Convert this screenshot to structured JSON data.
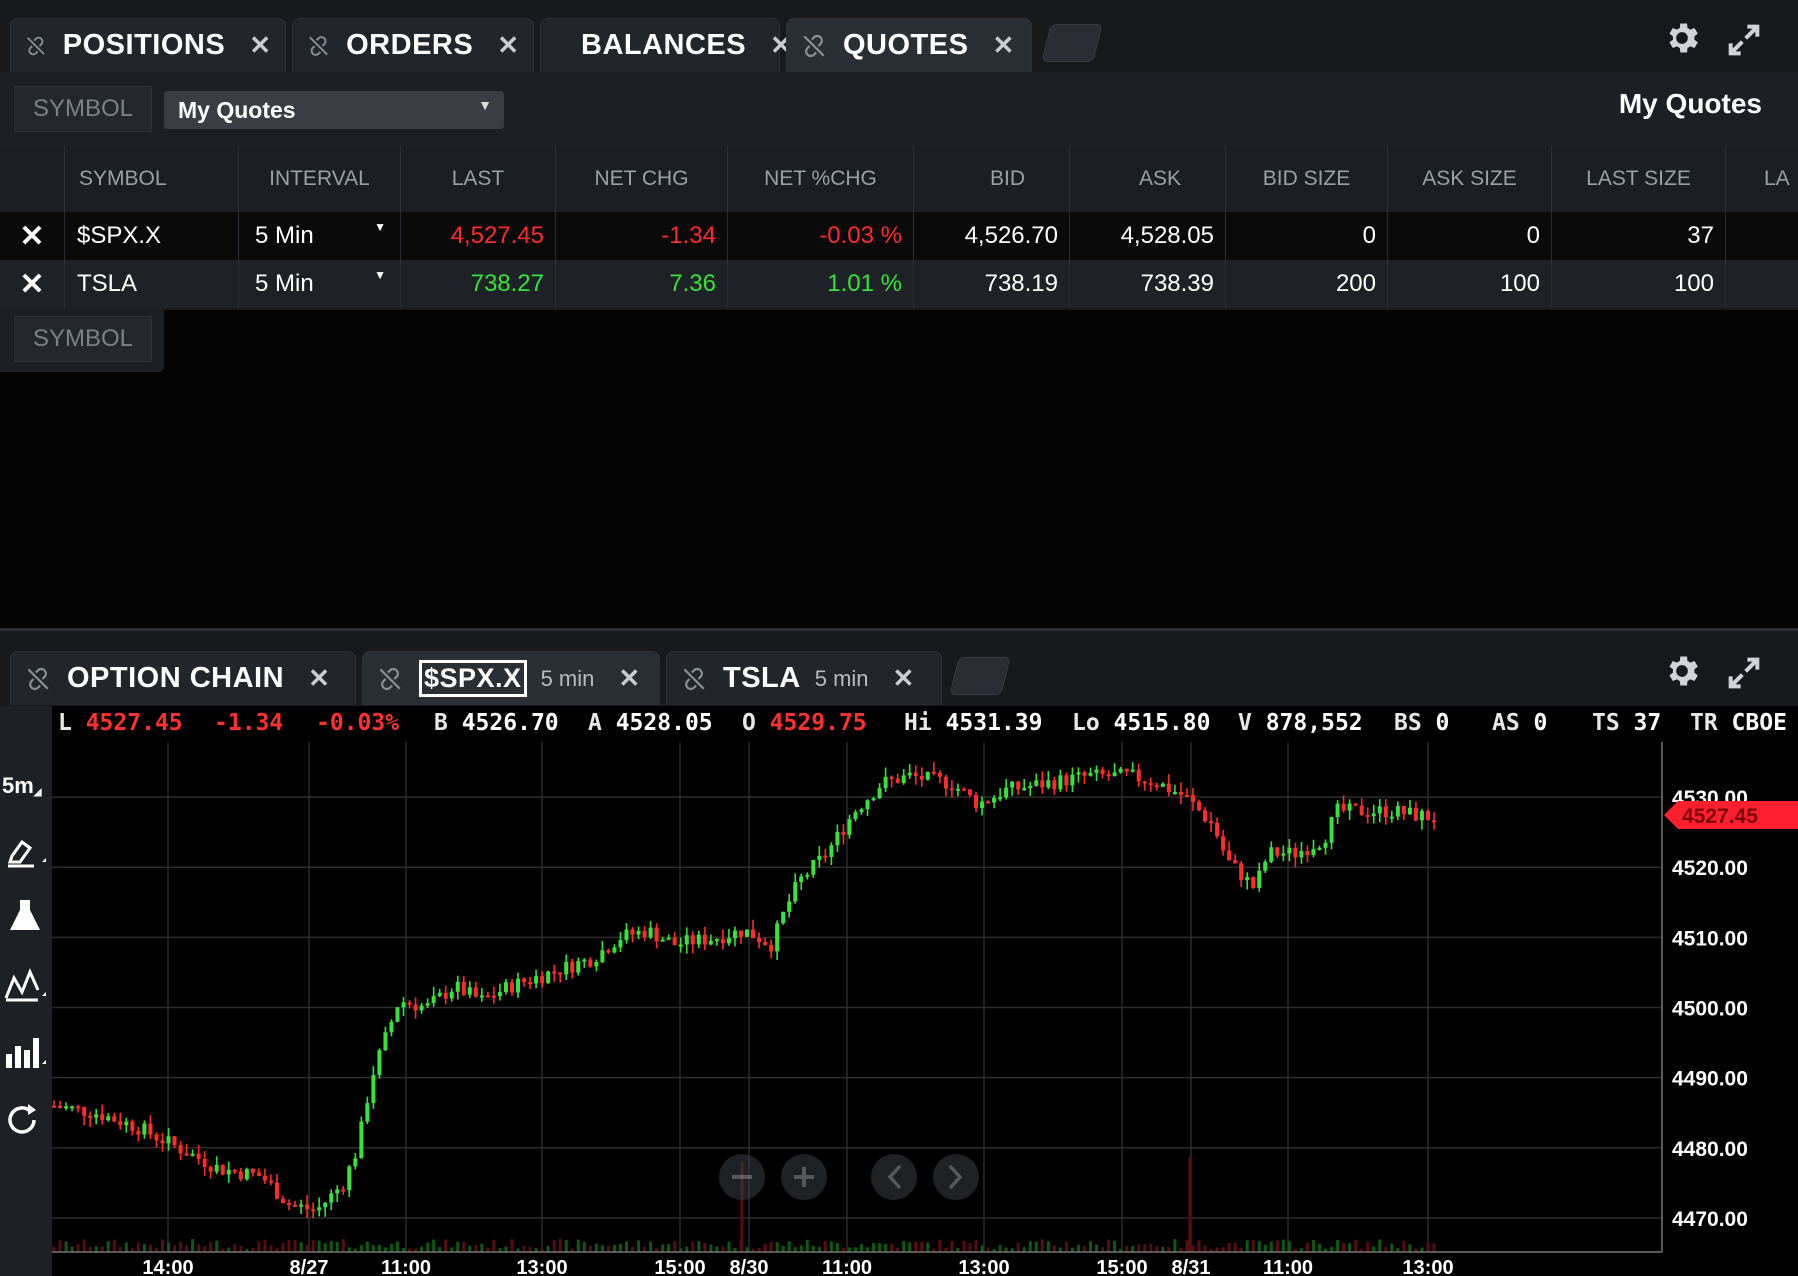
{
  "top_tabs": [
    {
      "label": "POSITIONS",
      "linked": true
    },
    {
      "label": "ORDERS",
      "linked": true
    },
    {
      "label": "BALANCES",
      "linked": false
    },
    {
      "label": "QUOTES",
      "linked": true
    }
  ],
  "filter": {
    "symbol_placeholder": "SYMBOL",
    "watchlist_selected": "My Quotes",
    "watchlist_title": "My Quotes"
  },
  "columns": [
    "SYMBOL",
    "INTERVAL",
    "LAST",
    "NET CHG",
    "NET %CHG",
    "BID",
    "ASK",
    "BID SIZE",
    "ASK SIZE",
    "LAST SIZE",
    "LA"
  ],
  "rows": [
    {
      "symbol": "$SPX.X",
      "interval": "5 Min",
      "last": "4,527.45",
      "net_chg": "-1.34",
      "net_pct": "-0.03 %",
      "bid": "4,526.70",
      "ask": "4,528.05",
      "bid_size": "0",
      "ask_size": "0",
      "last_size": "37",
      "direction": "down"
    },
    {
      "symbol": "TSLA",
      "interval": "5 Min",
      "last": "738.27",
      "net_chg": "7.36",
      "net_pct": "1.01 %",
      "bid": "738.19",
      "ask": "738.39",
      "bid_size": "200",
      "ask_size": "100",
      "last_size": "100",
      "direction": "up"
    }
  ],
  "add_symbol_placeholder": "SYMBOL",
  "bottom_tabs": [
    {
      "label": "OPTION CHAIN",
      "sub": ""
    },
    {
      "label": "$SPX.X",
      "sub": "5 min"
    },
    {
      "label": "TSLA",
      "sub": "5 min"
    }
  ],
  "quote_strip": {
    "L": "4527.45",
    "chg": "-1.34",
    "pct": "-0.03%",
    "B": "4526.70",
    "A": "4528.05",
    "O": "4529.75",
    "Hi": "4531.39",
    "Lo": "4515.80",
    "V": "878,552",
    "BS": "0",
    "AS": "0",
    "TS": "37",
    "TR": "CBOE"
  },
  "toolbar": {
    "interval_label": "5m"
  },
  "colors": {
    "up": "#35e33a",
    "down": "#ff2b2b",
    "price_tag": "#ff1f2e"
  },
  "chart_data": {
    "type": "candlestick",
    "symbol": "$SPX.X",
    "interval": "5 min",
    "ylim": [
      4466,
      4535
    ],
    "y_ticks": [
      "4530.00",
      "4520.00",
      "4510.00",
      "4500.00",
      "4490.00",
      "4480.00",
      "4470.00"
    ],
    "x_ticks": [
      "14:00",
      "8/27",
      "11:00",
      "13:00",
      "15:00",
      "8/30",
      "11:00",
      "13:00",
      "15:00",
      "8/31",
      "11:00",
      "13:00"
    ],
    "last_price": "4527.45",
    "price_path": [
      [
        0,
        4486
      ],
      [
        0.03,
        4485
      ],
      [
        0.06,
        4483
      ],
      [
        0.09,
        4480
      ],
      [
        0.12,
        4477
      ],
      [
        0.15,
        4476
      ],
      [
        0.17,
        4472
      ],
      [
        0.19,
        4471
      ],
      [
        0.21,
        4475
      ],
      [
        0.22,
        4480
      ],
      [
        0.23,
        4490
      ],
      [
        0.25,
        4501
      ],
      [
        0.27,
        4500
      ],
      [
        0.29,
        4503
      ],
      [
        0.31,
        4501
      ],
      [
        0.33,
        4503
      ],
      [
        0.36,
        4505
      ],
      [
        0.39,
        4507
      ],
      [
        0.41,
        4510
      ],
      [
        0.43,
        4511
      ],
      [
        0.45,
        4509
      ],
      [
        0.48,
        4510
      ],
      [
        0.5,
        4511
      ],
      [
        0.52,
        4509
      ],
      [
        0.53,
        4514
      ],
      [
        0.54,
        4518
      ],
      [
        0.56,
        4522
      ],
      [
        0.58,
        4528
      ],
      [
        0.6,
        4532
      ],
      [
        0.62,
        4533
      ],
      [
        0.65,
        4532
      ],
      [
        0.67,
        4529
      ],
      [
        0.69,
        4531
      ],
      [
        0.72,
        4532
      ],
      [
        0.75,
        4533
      ],
      [
        0.78,
        4533
      ],
      [
        0.8,
        4532
      ],
      [
        0.82,
        4530
      ],
      [
        0.84,
        4526
      ],
      [
        0.85,
        4521
      ],
      [
        0.87,
        4517
      ],
      [
        0.88,
        4522
      ],
      [
        0.9,
        4522
      ],
      [
        0.92,
        4524
      ],
      [
        0.93,
        4528
      ],
      [
        0.95,
        4528
      ],
      [
        0.97,
        4528
      ],
      [
        1.0,
        4527
      ]
    ]
  }
}
